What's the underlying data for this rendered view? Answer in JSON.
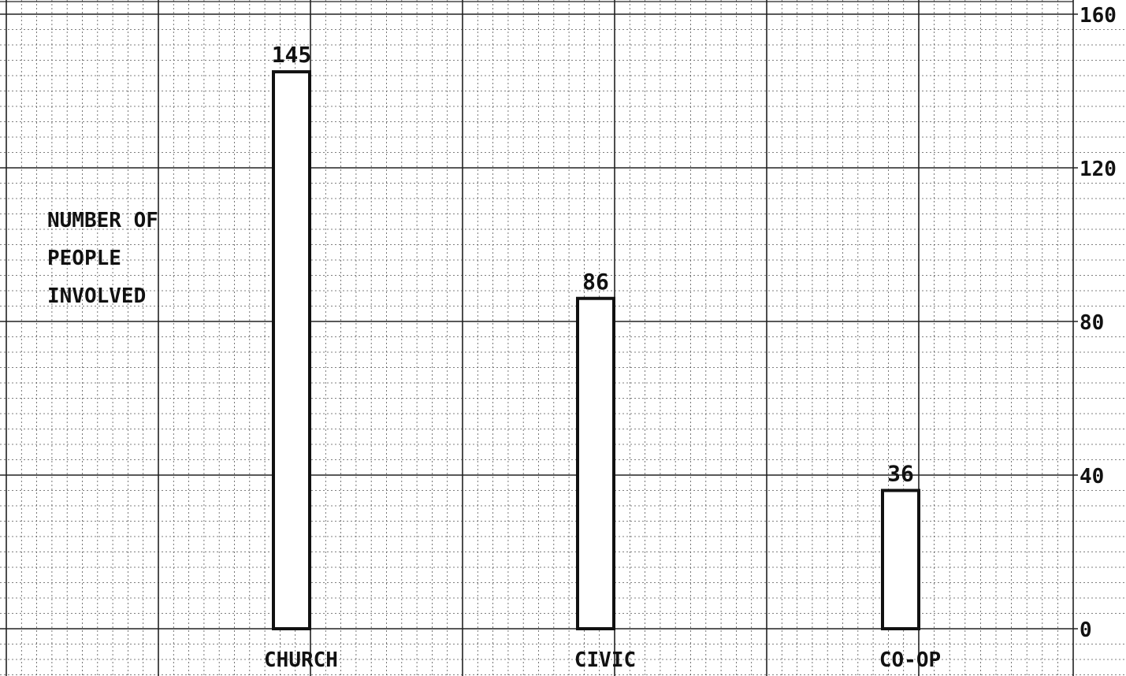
{
  "chart_data": {
    "type": "bar",
    "ylabel_lines": [
      "NUMBER OF",
      "PEOPLE",
      "INVOLVED"
    ],
    "categories": [
      "CHURCH",
      "CIVIC",
      "CO-OP"
    ],
    "values": [
      145,
      86,
      36
    ],
    "data_labels": [
      "145",
      "86",
      "36"
    ],
    "ylim": [
      0,
      160
    ],
    "y_ticks": [
      0,
      40,
      80,
      120,
      160
    ],
    "y_tick_labels": [
      "0",
      "40",
      "80",
      "120",
      "160"
    ],
    "y_axis_side": "right",
    "grid": true,
    "legend": "none"
  },
  "colors": {
    "ink": "#111111",
    "major_grid": "#222222",
    "minor_grid": "#555555",
    "paper": "#ffffff"
  }
}
